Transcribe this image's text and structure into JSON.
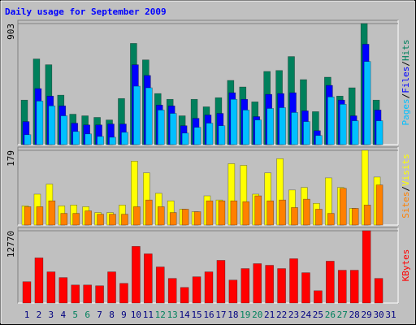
{
  "title": "Daily usage for September 2009",
  "separator": "/",
  "chart_data": [
    {
      "type": "bar",
      "ylim": [
        0,
        903
      ],
      "yticks": [
        903
      ],
      "series": [
        {
          "name": "Hits",
          "color": "#00805c",
          "values": [
            332,
            639,
            596,
            369,
            227,
            215,
            203,
            184,
            344,
            755,
            632,
            381,
            338,
            215,
            338,
            282,
            350,
            479,
            430,
            319,
            546,
            553,
            657,
            485,
            246,
            503,
            362,
            424,
            903,
            332,
            0
          ]
        },
        {
          "name": "Files",
          "color": "#0000ff",
          "values": [
            172,
            418,
            362,
            289,
            160,
            147,
            147,
            154,
            154,
            596,
            516,
            295,
            289,
            141,
            196,
            221,
            233,
            387,
            338,
            209,
            375,
            381,
            387,
            252,
            104,
            442,
            332,
            215,
            749,
            258,
            0
          ]
        },
        {
          "name": "Pages",
          "color": "#00c0ff",
          "values": [
            74,
            325,
            289,
            215,
            98,
            80,
            61,
            55,
            92,
            436,
            424,
            258,
            233,
            86,
            129,
            160,
            141,
            338,
            258,
            184,
            270,
            276,
            240,
            172,
            68,
            356,
            301,
            178,
            620,
            178,
            0
          ]
        }
      ]
    },
    {
      "type": "bar",
      "ylim": [
        0,
        179
      ],
      "yticks": [
        179
      ],
      "series": [
        {
          "name": "Visits",
          "color": "#ffff00",
          "values": [
            46,
            74,
            98,
            46,
            48,
            44,
            30,
            30,
            48,
            153,
            125,
            76,
            58,
            38,
            32,
            70,
            60,
            147,
            143,
            74,
            125,
            159,
            84,
            90,
            52,
            113,
            90,
            40,
            179,
            115,
            0
          ]
        },
        {
          "name": "Sites",
          "color": "#ff8000",
          "values": [
            44,
            44,
            58,
            28,
            28,
            34,
            26,
            26,
            26,
            44,
            60,
            44,
            30,
            38,
            32,
            58,
            58,
            58,
            56,
            70,
            58,
            60,
            42,
            62,
            38,
            28,
            88,
            40,
            48,
            96,
            0
          ]
        }
      ]
    },
    {
      "type": "bar",
      "ylim": [
        0,
        12770
      ],
      "yticks": [
        12770
      ],
      "categories": [
        "1",
        "2",
        "3",
        "4",
        "5",
        "6",
        "7",
        "8",
        "9",
        "10",
        "11",
        "12",
        "13",
        "14",
        "15",
        "16",
        "17",
        "18",
        "19",
        "20",
        "21",
        "22",
        "23",
        "24",
        "25",
        "26",
        "27",
        "28",
        "29",
        "30",
        "31"
      ],
      "category_colors": [
        "#000080",
        "#000080",
        "#000080",
        "#000080",
        "#00805c",
        "#00805c",
        "#000080",
        "#000080",
        "#000080",
        "#000080",
        "#000080",
        "#00805c",
        "#00805c",
        "#000080",
        "#000080",
        "#000080",
        "#000080",
        "#000080",
        "#00805c",
        "#00805c",
        "#000080",
        "#000080",
        "#000080",
        "#000080",
        "#000080",
        "#00805c",
        "#00805c",
        "#000080",
        "#000080",
        "#000080",
        "#000080"
      ],
      "series": [
        {
          "name": "KBytes",
          "color": "#ff0000",
          "values": [
            3770,
            7980,
            5510,
            4500,
            3190,
            3190,
            3050,
            5510,
            3480,
            10010,
            8700,
            6380,
            4350,
            2760,
            4640,
            5510,
            7540,
            4060,
            6090,
            6960,
            6670,
            6090,
            7830,
            5360,
            2180,
            7400,
            5800,
            5800,
            12770,
            4350,
            0
          ]
        }
      ]
    }
  ]
}
